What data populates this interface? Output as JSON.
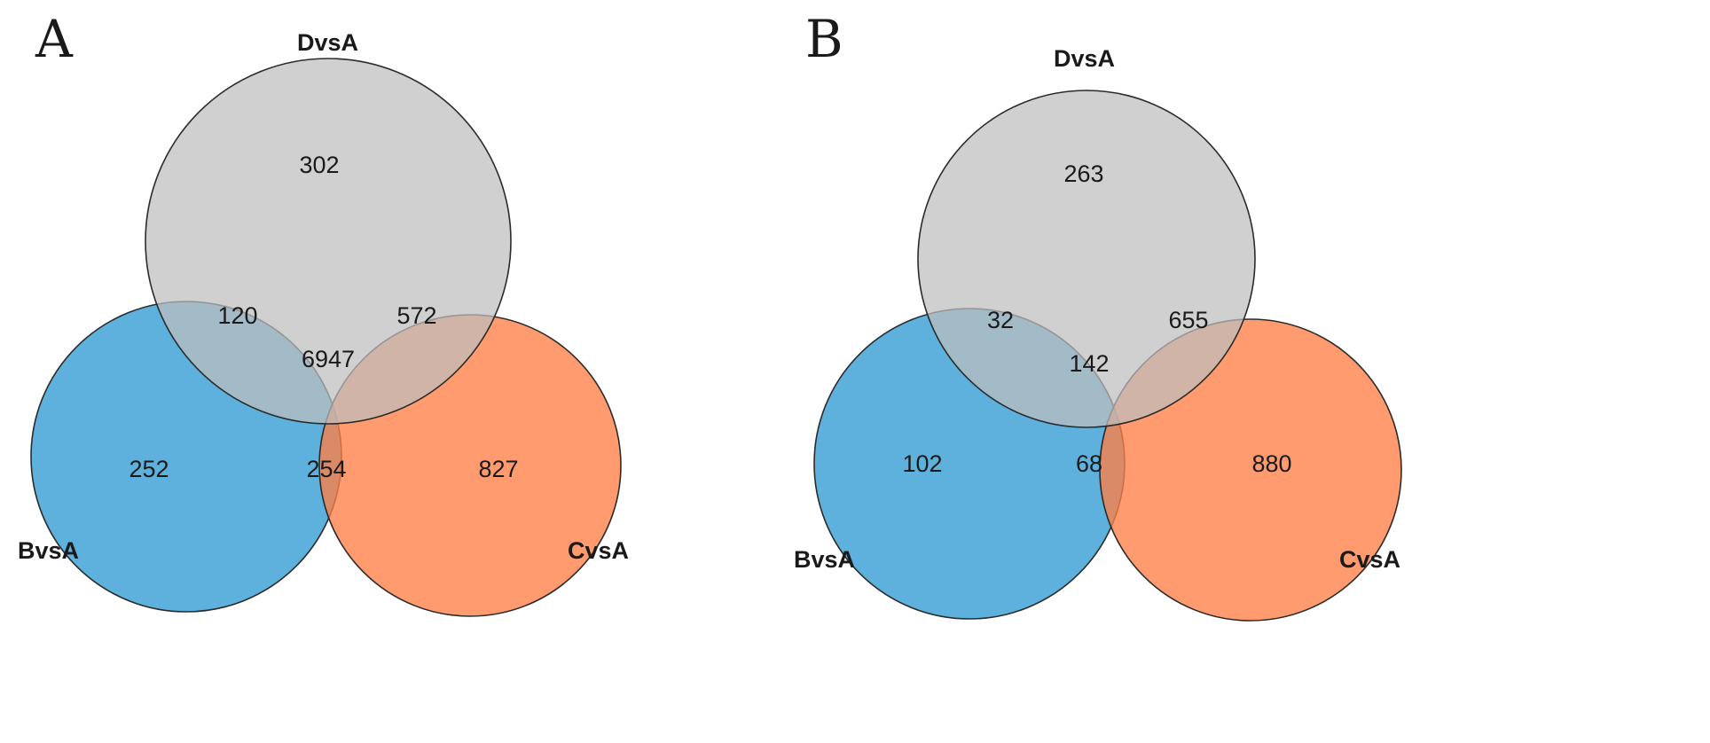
{
  "colors": {
    "BvsA": "#3aa0d6",
    "CvsA": "#ff7f45",
    "DvsA": "#bebebe"
  },
  "panels": [
    {
      "letter": "A",
      "labels": {
        "top": "DvsA",
        "left": "BvsA",
        "right": "CvsA"
      },
      "counts": {
        "d_only": "302",
        "b_only": "252",
        "c_only": "827",
        "bd": "120",
        "cd": "572",
        "bc": "254",
        "bcd": "6947"
      }
    },
    {
      "letter": "B",
      "labels": {
        "top": "DvsA",
        "left": "BvsA",
        "right": "CvsA"
      },
      "counts": {
        "d_only": "263",
        "b_only": "102",
        "c_only": "880",
        "bd": "32",
        "cd": "655",
        "bc": "68",
        "bcd": "142"
      }
    }
  ]
}
